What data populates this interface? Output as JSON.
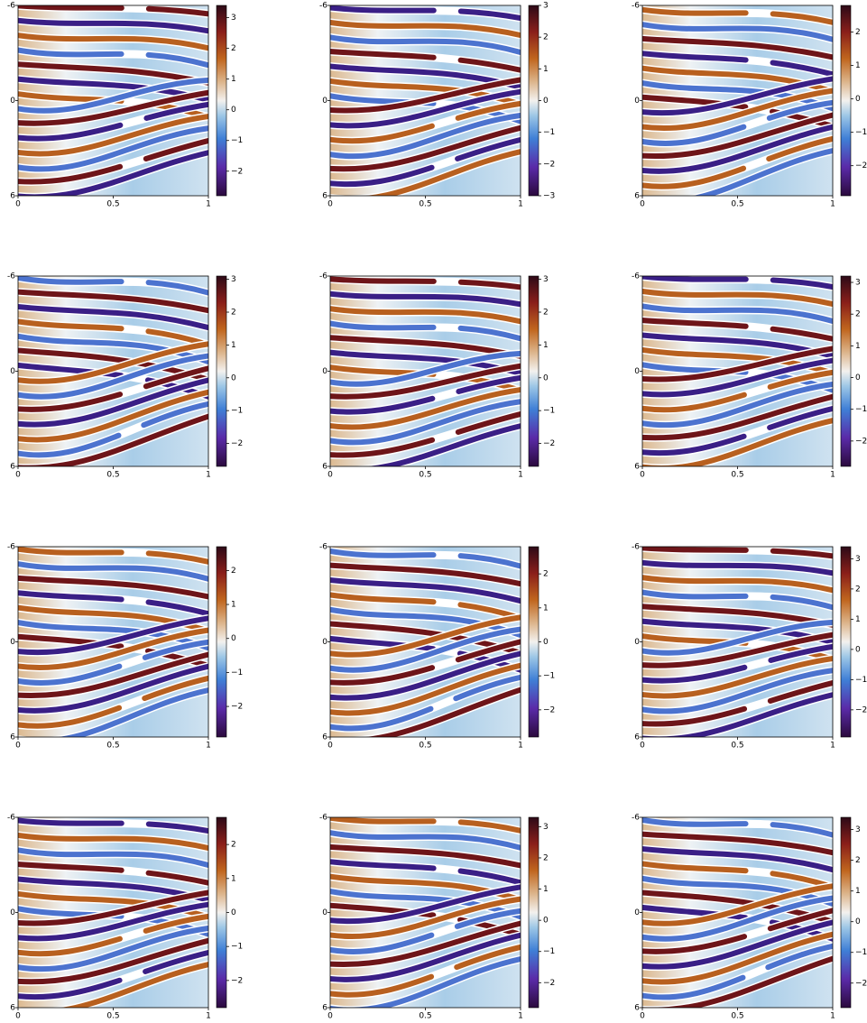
{
  "chart_data": [
    {
      "type": "heatmap",
      "xlim": [
        0,
        1
      ],
      "xticks": [
        0,
        0.5,
        1
      ],
      "ylim": [
        -6,
        6
      ],
      "yticks": [
        -6,
        0,
        6
      ],
      "y_inverted": true,
      "clim": [
        -2.8,
        3.4
      ],
      "cticks": [
        {
          "value": -2,
          "label": "−2"
        },
        {
          "value": -1,
          "label": "−1"
        },
        0,
        1,
        2,
        3
      ]
    },
    {
      "type": "heatmap",
      "xlim": [
        0,
        1
      ],
      "xticks": [
        0,
        0.5,
        1
      ],
      "ylim": [
        -6,
        6
      ],
      "yticks": [
        -6,
        0,
        6
      ],
      "y_inverted": true,
      "clim": [
        -3,
        3
      ],
      "cticks": [
        {
          "value": -3,
          "label": "−3"
        },
        {
          "value": -2,
          "label": "−2"
        },
        {
          "value": -1,
          "label": "−1"
        },
        0,
        1,
        2,
        3
      ]
    },
    {
      "type": "heatmap",
      "xlim": [
        0,
        1
      ],
      "xticks": [
        0,
        0.5,
        1
      ],
      "ylim": [
        -6,
        6
      ],
      "yticks": [
        -6,
        0,
        6
      ],
      "y_inverted": true,
      "clim": [
        -2.9,
        2.8
      ],
      "cticks": [
        {
          "value": -2,
          "label": "−2"
        },
        {
          "value": -1,
          "label": "−1"
        },
        0,
        1,
        2
      ]
    },
    {
      "type": "heatmap",
      "xlim": [
        0,
        1
      ],
      "xticks": [
        0,
        0.5,
        1
      ],
      "ylim": [
        -6,
        6
      ],
      "yticks": [
        -6,
        0,
        6
      ],
      "y_inverted": true,
      "clim": [
        -2.7,
        3.1
      ],
      "cticks": [
        {
          "value": -2,
          "label": "−2"
        },
        {
          "value": -1,
          "label": "−1"
        },
        0,
        1,
        2,
        3
      ]
    },
    {
      "type": "heatmap",
      "xlim": [
        0,
        1
      ],
      "xticks": [
        0,
        0.5,
        1
      ],
      "ylim": [
        -6,
        6
      ],
      "yticks": [
        -6,
        0,
        6
      ],
      "y_inverted": true,
      "clim": [
        -2.7,
        3.1
      ],
      "cticks": [
        {
          "value": -2,
          "label": "−2"
        },
        {
          "value": -1,
          "label": "−1"
        },
        0,
        1,
        2,
        3
      ]
    },
    {
      "type": "heatmap",
      "xlim": [
        0,
        1
      ],
      "xticks": [
        0,
        0.5,
        1
      ],
      "ylim": [
        -6,
        6
      ],
      "yticks": [
        -6,
        0,
        6
      ],
      "y_inverted": true,
      "clim": [
        -2.8,
        3.2
      ],
      "cticks": [
        {
          "value": -2,
          "label": "−2"
        },
        {
          "value": -1,
          "label": "−1"
        },
        0,
        1,
        2,
        3
      ]
    },
    {
      "type": "heatmap",
      "xlim": [
        0,
        1
      ],
      "xticks": [
        0,
        0.5,
        1
      ],
      "ylim": [
        -6,
        6
      ],
      "yticks": [
        -6,
        0,
        6
      ],
      "y_inverted": true,
      "clim": [
        -2.9,
        2.7
      ],
      "cticks": [
        {
          "value": -2,
          "label": "−2"
        },
        {
          "value": -1,
          "label": "−1"
        },
        0,
        1,
        2
      ]
    },
    {
      "type": "heatmap",
      "xlim": [
        0,
        1
      ],
      "xticks": [
        0,
        0.5,
        1
      ],
      "ylim": [
        -6,
        6
      ],
      "yticks": [
        -6,
        0,
        6
      ],
      "y_inverted": true,
      "clim": [
        -2.8,
        2.8
      ],
      "cticks": [
        {
          "value": -2,
          "label": "−2"
        },
        {
          "value": -1,
          "label": "−1"
        },
        0,
        1,
        2
      ]
    },
    {
      "type": "heatmap",
      "xlim": [
        0,
        1
      ],
      "xticks": [
        0,
        0.5,
        1
      ],
      "ylim": [
        -6,
        6
      ],
      "yticks": [
        -6,
        0,
        6
      ],
      "y_inverted": true,
      "clim": [
        -2.9,
        3.4
      ],
      "cticks": [
        {
          "value": -2,
          "label": "−2"
        },
        {
          "value": -1,
          "label": "−1"
        },
        0,
        1,
        2,
        3
      ]
    },
    {
      "type": "heatmap",
      "xlim": [
        0,
        1
      ],
      "xticks": [
        0,
        0.5,
        1
      ],
      "ylim": [
        -6,
        6
      ],
      "yticks": [
        -6,
        0,
        6
      ],
      "y_inverted": true,
      "clim": [
        -2.8,
        2.8
      ],
      "cticks": [
        {
          "value": -2,
          "label": "−2"
        },
        {
          "value": -1,
          "label": "−1"
        },
        0,
        1,
        2
      ]
    },
    {
      "type": "heatmap",
      "xlim": [
        0,
        1
      ],
      "xticks": [
        0,
        0.5,
        1
      ],
      "ylim": [
        -6,
        6
      ],
      "yticks": [
        -6,
        0,
        6
      ],
      "y_inverted": true,
      "clim": [
        -2.8,
        3.3
      ],
      "cticks": [
        {
          "value": -2,
          "label": "−2"
        },
        {
          "value": -1,
          "label": "−1"
        },
        0,
        1,
        2,
        3
      ]
    },
    {
      "type": "heatmap",
      "xlim": [
        0,
        1
      ],
      "xticks": [
        0,
        0.5,
        1
      ],
      "ylim": [
        -6,
        6
      ],
      "yticks": [
        -6,
        0,
        6
      ],
      "y_inverted": true,
      "clim": [
        -2.8,
        3.4
      ],
      "cticks": [
        {
          "value": -2,
          "label": "−2"
        },
        {
          "value": -1,
          "label": "−1"
        },
        0,
        1,
        2,
        3
      ]
    }
  ]
}
